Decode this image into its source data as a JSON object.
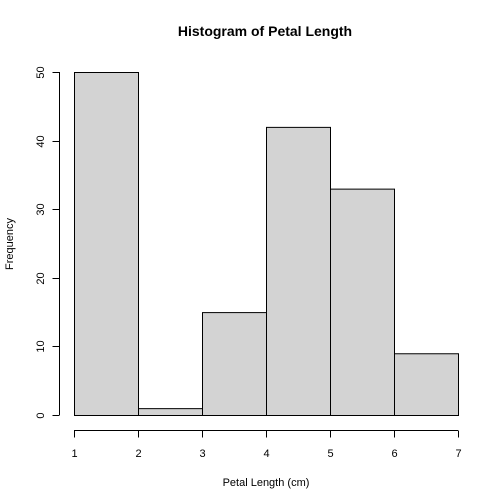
{
  "chart_data": {
    "type": "bar",
    "title": "Histogram of Petal Length",
    "xlabel": "Petal Length (cm)",
    "ylabel": "Frequency",
    "bin_edges": [
      1,
      2,
      3,
      4,
      5,
      6,
      7
    ],
    "values": [
      50,
      1,
      15,
      42,
      33,
      9
    ],
    "xlim": [
      1,
      7
    ],
    "ylim": [
      0,
      50
    ],
    "x_ticks": [
      "1",
      "2",
      "3",
      "4",
      "5",
      "6",
      "7"
    ],
    "y_ticks": [
      "0",
      "10",
      "20",
      "30",
      "40",
      "50"
    ],
    "grid": false,
    "bar_color": "#d3d3d3",
    "edge_color": "#000000"
  }
}
